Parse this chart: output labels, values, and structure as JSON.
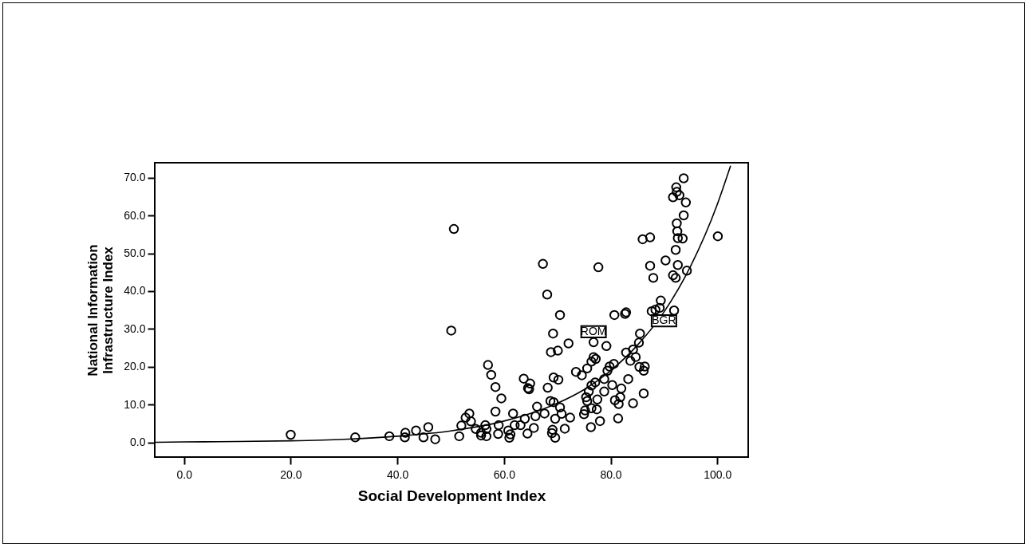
{
  "chart_data": {
    "type": "scatter",
    "xlabel": "Social Development Index",
    "ylabel": "National Information Infrastructure Index",
    "xlim": [
      -5.5,
      105.8
    ],
    "ylim": [
      -3.8,
      73.9
    ],
    "xticks": [
      {
        "value": 0,
        "label": "0.0"
      },
      {
        "value": 20,
        "label": "20.0"
      },
      {
        "value": 40,
        "label": "40.0"
      },
      {
        "value": 60,
        "label": "60.0"
      },
      {
        "value": 80,
        "label": "80.0"
      },
      {
        "value": 100,
        "label": "100.0"
      }
    ],
    "yticks": [
      {
        "value": 0,
        "label": "0.0"
      },
      {
        "value": 10,
        "label": "10.0"
      },
      {
        "value": 20,
        "label": "20.0"
      },
      {
        "value": 30,
        "label": "30.0"
      },
      {
        "value": 40,
        "label": "40.0"
      },
      {
        "value": 50,
        "label": "50.0"
      },
      {
        "value": 60,
        "label": "60.0"
      },
      {
        "value": 70,
        "label": "70.0"
      }
    ],
    "grid": false,
    "line_style": "solid",
    "series": [
      {
        "marker": "circle",
        "color": "#000000",
        "x": [
          20.0,
          32.1,
          38.5,
          41.5,
          41.4,
          43.5,
          45.8,
          44.9,
          47.1,
          50.6,
          50.1,
          67.3,
          77.7,
          68.1,
          70.5,
          69.2,
          100.1,
          93.7,
          92.3,
          92.4,
          92.9,
          91.7,
          94.1,
          93.7,
          92.4,
          92.5,
          92.6,
          93.5,
          86.0,
          87.4,
          92.2,
          90.3,
          92.6,
          94.3,
          87.4,
          91.7,
          92.2,
          88.0,
          89.4,
          89.2,
          87.7,
          91.9,
          88.4,
          82.9,
          82.7,
          80.7,
          76.8,
          79.2,
          85.5,
          85.3,
          72.1,
          68.8,
          70.1,
          84.2,
          82.9,
          83.7,
          84.7,
          85.4,
          86.4,
          86.2,
          76.8,
          77.2,
          76.4,
          75.6,
          79.8,
          80.6,
          79.4,
          73.5,
          74.6,
          78.8,
          83.3,
          77.1,
          76.4,
          80.3,
          82.0,
          75.9,
          78.8,
          81.8,
          86.2,
          75.4,
          75.6,
          77.5,
          80.8,
          81.5,
          84.2,
          76.4,
          77.4,
          75.2,
          75.0,
          81.4,
          78.0,
          76.3,
          57.0,
          57.6,
          58.4,
          59.5,
          63.7,
          64.9,
          64.5,
          64.7,
          69.3,
          70.2,
          68.2,
          68.7,
          69.3,
          70.5,
          70.8,
          69.6,
          72.4,
          71.4,
          69.1,
          69.0,
          69.6,
          66.2,
          67.6,
          65.9,
          63.9,
          63.1,
          65.6,
          64.4,
          61.7,
          58.4,
          62.0,
          60.8,
          61.2,
          61.0,
          59.0,
          58.9,
          56.5,
          56.7,
          55.7,
          56.7,
          55.7,
          53.5,
          53.8,
          52.8,
          54.7,
          52.0,
          51.6
        ],
        "values": [
          2.1,
          1.4,
          1.7,
          2.6,
          1.4,
          3.2,
          4.1,
          1.4,
          0.9,
          56.4,
          29.6,
          47.2,
          46.3,
          39.1,
          33.7,
          28.8,
          54.5,
          69.8,
          67.4,
          66.2,
          65.3,
          64.8,
          63.4,
          60.0,
          57.9,
          55.8,
          54.0,
          53.9,
          53.7,
          54.2,
          50.9,
          48.1,
          46.9,
          45.4,
          46.7,
          44.2,
          43.5,
          43.5,
          37.5,
          35.6,
          34.7,
          34.9,
          35.1,
          34.4,
          34.0,
          33.7,
          26.5,
          25.5,
          28.8,
          26.4,
          26.2,
          23.9,
          24.3,
          24.6,
          23.8,
          21.6,
          22.6,
          20.0,
          20.1,
          19.0,
          22.6,
          22.1,
          21.4,
          19.6,
          20.1,
          20.8,
          19.0,
          18.7,
          17.8,
          16.8,
          16.8,
          15.9,
          15.1,
          15.2,
          14.3,
          13.5,
          13.5,
          12.0,
          13.0,
          12.0,
          11.0,
          11.4,
          11.2,
          10.2,
          10.4,
          9.1,
          8.8,
          8.5,
          7.5,
          6.4,
          5.7,
          4.1,
          20.5,
          17.9,
          14.7,
          11.7,
          16.9,
          15.6,
          14.4,
          14.1,
          17.2,
          16.6,
          14.5,
          11.0,
          10.7,
          9.3,
          7.6,
          6.3,
          6.6,
          3.7,
          3.4,
          2.5,
          1.3,
          9.5,
          7.7,
          7.0,
          6.3,
          4.6,
          3.9,
          2.4,
          7.7,
          8.2,
          4.6,
          3.2,
          2.2,
          1.3,
          4.6,
          2.3,
          4.6,
          3.6,
          2.6,
          1.7,
          1.9,
          7.7,
          5.6,
          6.6,
          3.6,
          4.5,
          1.7
        ]
      },
      {
        "type": "line",
        "marker": "none",
        "color": "#000000",
        "x": [
          -5.5,
          0,
          10,
          20,
          30,
          40,
          50,
          60,
          70,
          75,
          80,
          85,
          90,
          95,
          100,
          102.5
        ],
        "values": [
          0.1,
          0.2,
          0.3,
          0.5,
          0.9,
          1.7,
          3.1,
          5.7,
          10.4,
          14.0,
          19.0,
          25.7,
          34.5,
          46.6,
          62.9,
          73.1
        ]
      }
    ],
    "annotations": [
      {
        "text": "ROM",
        "x": 76.8,
        "y": 29.3
      },
      {
        "text": "BGR",
        "x": 90.0,
        "y": 32.2
      }
    ]
  }
}
